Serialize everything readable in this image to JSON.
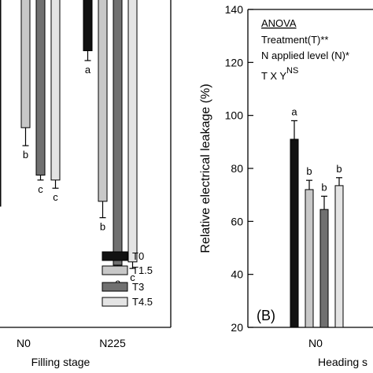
{
  "chart_data": [
    {
      "panel": "left (cropped)",
      "type": "bar",
      "xlabel": "Filling stage",
      "ylabel": "",
      "categories": [
        "N0",
        "N225"
      ],
      "series": [
        {
          "name": "T0",
          "values": [
            null,
            0.845
          ],
          "errors": [
            null,
            0.03
          ],
          "letters": [
            "",
            "a"
          ],
          "color": "#111111"
        },
        {
          "name": "T1.5",
          "values": [
            0.61,
            0.385
          ],
          "errors": [
            0.055,
            0.05
          ],
          "letters": [
            "b",
            "b"
          ],
          "color": "#c8c8c8"
        },
        {
          "name": "T3",
          "values": [
            0.465,
            0.19
          ],
          "errors": [
            0.015,
            0.025
          ],
          "letters": [
            "c",
            "c"
          ],
          "color": "#707070"
        },
        {
          "name": "T4.5",
          "values": [
            0.45,
            0.2
          ],
          "errors": [
            0.025,
            0.02
          ],
          "letters": [
            "c",
            "c"
          ],
          "color": "#e4e4e4"
        }
      ],
      "legend": [
        "T0",
        "T1.5",
        "T3",
        "T4.5"
      ],
      "legend_position": "bottom-right"
    },
    {
      "panel": "(B)",
      "type": "bar",
      "xlabel": "Heading s",
      "ylabel": "Relative electrical leakage (%)",
      "ylim": [
        20,
        140
      ],
      "yticks": [
        "20",
        "40",
        "60",
        "80",
        "100",
        "120",
        "140"
      ],
      "categories": [
        "N0"
      ],
      "series": [
        {
          "name": "T0",
          "values": [
            91
          ],
          "errors": [
            7
          ],
          "letters": [
            "a"
          ],
          "color": "#111111"
        },
        {
          "name": "T1.5",
          "values": [
            72
          ],
          "errors": [
            3.5
          ],
          "letters": [
            "b"
          ],
          "color": "#c8c8c8"
        },
        {
          "name": "T3",
          "values": [
            64.5
          ],
          "errors": [
            5
          ],
          "letters": [
            "b"
          ],
          "color": "#707070"
        },
        {
          "name": "T4.5",
          "values": [
            73.5
          ],
          "errors": [
            3
          ],
          "letters": [
            "b"
          ],
          "color": "#e4e4e4"
        }
      ],
      "panel_label": "(B)",
      "annotation": {
        "title": "ANOVA",
        "line1": "Treatment(T)**",
        "line2": "N applied level (N)*",
        "line3": "T X Y",
        "line3_sup": "NS"
      }
    }
  ]
}
